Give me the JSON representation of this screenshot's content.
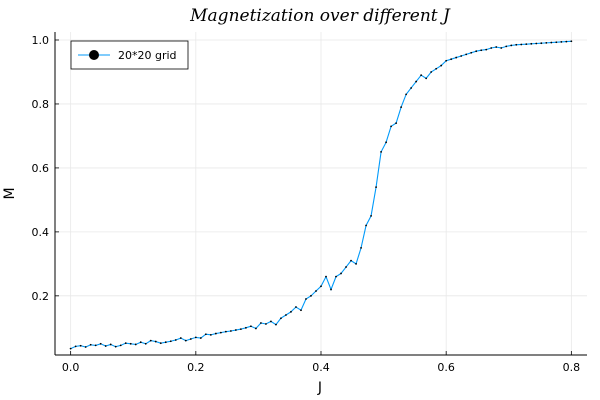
{
  "chart_data": {
    "type": "line",
    "title": "Magnetization over different J",
    "xlabel": "J",
    "ylabel": "M",
    "xlim": [
      -0.025,
      0.825
    ],
    "ylim": [
      0.015,
      1.025
    ],
    "xticks": [
      0.0,
      0.2,
      0.4,
      0.6,
      0.8
    ],
    "xtick_labels": [
      "0.0",
      "0.2",
      "0.4",
      "0.6",
      "0.8"
    ],
    "yticks": [
      0.2,
      0.4,
      0.6,
      0.8,
      1.0
    ],
    "ytick_labels": [
      "0.2",
      "0.4",
      "0.6",
      "0.8",
      "1.0"
    ],
    "grid": true,
    "legend_position": "top-left",
    "series": [
      {
        "name": "20*20 grid",
        "color": "#009AFA",
        "marker": "circle",
        "x": [
          0.0,
          0.008,
          0.016,
          0.024,
          0.032,
          0.04,
          0.048,
          0.056,
          0.064,
          0.072,
          0.08,
          0.088,
          0.096,
          0.104,
          0.112,
          0.12,
          0.128,
          0.136,
          0.144,
          0.152,
          0.16,
          0.168,
          0.176,
          0.184,
          0.192,
          0.2,
          0.208,
          0.216,
          0.224,
          0.232,
          0.24,
          0.248,
          0.256,
          0.264,
          0.272,
          0.28,
          0.288,
          0.296,
          0.304,
          0.312,
          0.32,
          0.328,
          0.336,
          0.344,
          0.352,
          0.36,
          0.368,
          0.376,
          0.384,
          0.392,
          0.4,
          0.408,
          0.416,
          0.424,
          0.432,
          0.44,
          0.448,
          0.456,
          0.464,
          0.472,
          0.48,
          0.488,
          0.496,
          0.504,
          0.512,
          0.52,
          0.528,
          0.536,
          0.544,
          0.552,
          0.56,
          0.568,
          0.576,
          0.584,
          0.592,
          0.6,
          0.608,
          0.616,
          0.624,
          0.632,
          0.64,
          0.648,
          0.656,
          0.664,
          0.672,
          0.68,
          0.688,
          0.696,
          0.704,
          0.712,
          0.72,
          0.728,
          0.736,
          0.744,
          0.752,
          0.76,
          0.768,
          0.776,
          0.784,
          0.792,
          0.8
        ],
        "values": [
          0.035,
          0.042,
          0.044,
          0.04,
          0.047,
          0.045,
          0.05,
          0.043,
          0.048,
          0.041,
          0.045,
          0.052,
          0.05,
          0.048,
          0.055,
          0.05,
          0.06,
          0.057,
          0.052,
          0.055,
          0.058,
          0.062,
          0.068,
          0.06,
          0.065,
          0.07,
          0.068,
          0.08,
          0.078,
          0.082,
          0.085,
          0.088,
          0.09,
          0.093,
          0.096,
          0.1,
          0.105,
          0.098,
          0.115,
          0.112,
          0.12,
          0.11,
          0.13,
          0.14,
          0.15,
          0.165,
          0.155,
          0.19,
          0.2,
          0.215,
          0.23,
          0.26,
          0.22,
          0.26,
          0.27,
          0.29,
          0.31,
          0.3,
          0.35,
          0.42,
          0.45,
          0.54,
          0.65,
          0.68,
          0.73,
          0.74,
          0.79,
          0.83,
          0.85,
          0.87,
          0.89,
          0.88,
          0.9,
          0.91,
          0.92,
          0.935,
          0.94,
          0.945,
          0.95,
          0.955,
          0.96,
          0.965,
          0.968,
          0.97,
          0.975,
          0.978,
          0.975,
          0.98,
          0.983,
          0.985,
          0.986,
          0.987,
          0.988,
          0.989,
          0.99,
          0.991,
          0.992,
          0.993,
          0.994,
          0.995,
          0.996
        ]
      }
    ]
  }
}
